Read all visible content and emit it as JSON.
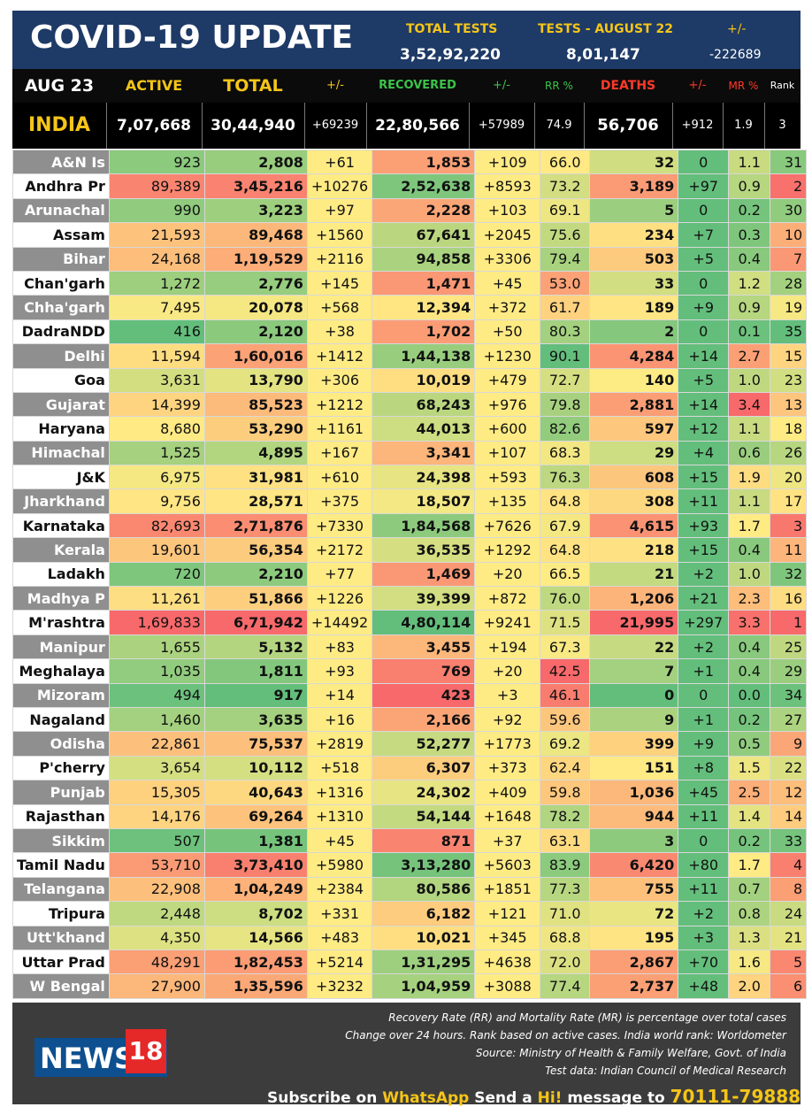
{
  "header": {
    "title": "COVID-19 UPDATE",
    "total_tests_label": "TOTAL TESTS",
    "total_tests_value": "3,52,92,220",
    "tests_day_label": "TESTS - AUGUST 22",
    "tests_day_value": "8,01,147",
    "diff_label": "+/-",
    "diff_value": "-222689"
  },
  "columns": {
    "date": "AUG 23",
    "active": "ACTIVE",
    "total": "TOTAL",
    "total_change": "+/-",
    "recovered": "RECOVERED",
    "recovered_change": "+/-",
    "rr": "RR %",
    "deaths": "DEATHS",
    "deaths_change": "+/-",
    "mr": "MR %",
    "rank": "Rank"
  },
  "india": {
    "name": "INDIA",
    "active": "7,07,668",
    "total": "30,44,940",
    "total_change": "+69239",
    "recovered": "22,80,566",
    "recovered_change": "+57989",
    "rr": "74.9",
    "deaths": "56,706",
    "deaths_change": "+912",
    "mr": "1.9",
    "rank": "3"
  },
  "colors": {
    "header_bg": "#1e3a66",
    "accent_yellow": "#f5c518",
    "recovered_green": "#3cc34a",
    "deaths_red": "#ff3a2a",
    "footer_bg": "#3c3c3c",
    "news18_red": "#e52828",
    "news18_blue": "#0d4f8f"
  },
  "states": [
    [
      "A&N Is",
      "923",
      "2,808",
      "+61",
      "1,853",
      "+109",
      "66.0",
      "32",
      "0",
      "1.1",
      "31"
    ],
    [
      "Andhra Pr",
      "89,389",
      "3,45,216",
      "+10276",
      "2,52,638",
      "+8593",
      "73.2",
      "3,189",
      "+97",
      "0.9",
      "2"
    ],
    [
      "Arunachal",
      "990",
      "3,223",
      "+97",
      "2,228",
      "+103",
      "69.1",
      "5",
      "0",
      "0.2",
      "30"
    ],
    [
      "Assam",
      "21,593",
      "89,468",
      "+1560",
      "67,641",
      "+2045",
      "75.6",
      "234",
      "+7",
      "0.3",
      "10"
    ],
    [
      "Bihar",
      "24,168",
      "1,19,529",
      "+2116",
      "94,858",
      "+3306",
      "79.4",
      "503",
      "+5",
      "0.4",
      "7"
    ],
    [
      "Chan'garh",
      "1,272",
      "2,776",
      "+145",
      "1,471",
      "+45",
      "53.0",
      "33",
      "0",
      "1.2",
      "28"
    ],
    [
      "Chha'garh",
      "7,495",
      "20,078",
      "+568",
      "12,394",
      "+372",
      "61.7",
      "189",
      "+9",
      "0.9",
      "19"
    ],
    [
      "DadraNDD",
      "416",
      "2,120",
      "+38",
      "1,702",
      "+50",
      "80.3",
      "2",
      "0",
      "0.1",
      "35"
    ],
    [
      "Delhi",
      "11,594",
      "1,60,016",
      "+1412",
      "1,44,138",
      "+1230",
      "90.1",
      "4,284",
      "+14",
      "2.7",
      "15"
    ],
    [
      "Goa",
      "3,631",
      "13,790",
      "+306",
      "10,019",
      "+479",
      "72.7",
      "140",
      "+5",
      "1.0",
      "23"
    ],
    [
      "Gujarat",
      "14,399",
      "85,523",
      "+1212",
      "68,243",
      "+976",
      "79.8",
      "2,881",
      "+14",
      "3.4",
      "13"
    ],
    [
      "Haryana",
      "8,680",
      "53,290",
      "+1161",
      "44,013",
      "+600",
      "82.6",
      "597",
      "+12",
      "1.1",
      "18"
    ],
    [
      "Himachal",
      "1,525",
      "4,895",
      "+167",
      "3,341",
      "+107",
      "68.3",
      "29",
      "+4",
      "0.6",
      "26"
    ],
    [
      "J&K",
      "6,975",
      "31,981",
      "+610",
      "24,398",
      "+593",
      "76.3",
      "608",
      "+15",
      "1.9",
      "20"
    ],
    [
      "Jharkhand",
      "9,756",
      "28,571",
      "+375",
      "18,507",
      "+135",
      "64.8",
      "308",
      "+11",
      "1.1",
      "17"
    ],
    [
      "Karnataka",
      "82,693",
      "2,71,876",
      "+7330",
      "1,84,568",
      "+7626",
      "67.9",
      "4,615",
      "+93",
      "1.7",
      "3"
    ],
    [
      "Kerala",
      "19,601",
      "56,354",
      "+2172",
      "36,535",
      "+1292",
      "64.8",
      "218",
      "+15",
      "0.4",
      "11"
    ],
    [
      "Ladakh",
      "720",
      "2,210",
      "+77",
      "1,469",
      "+20",
      "66.5",
      "21",
      "+2",
      "1.0",
      "32"
    ],
    [
      "Madhya P",
      "11,261",
      "51,866",
      "+1226",
      "39,399",
      "+872",
      "76.0",
      "1,206",
      "+21",
      "2.3",
      "16"
    ],
    [
      "M'rashtra",
      "1,69,833",
      "6,71,942",
      "+14492",
      "4,80,114",
      "+9241",
      "71.5",
      "21,995",
      "+297",
      "3.3",
      "1"
    ],
    [
      "Manipur",
      "1,655",
      "5,132",
      "+83",
      "3,455",
      "+194",
      "67.3",
      "22",
      "+2",
      "0.4",
      "25"
    ],
    [
      "Meghalaya",
      "1,035",
      "1,811",
      "+93",
      "769",
      "+20",
      "42.5",
      "7",
      "+1",
      "0.4",
      "29"
    ],
    [
      "Mizoram",
      "494",
      "917",
      "+14",
      "423",
      "+3",
      "46.1",
      "0",
      "0",
      "0.0",
      "34"
    ],
    [
      "Nagaland",
      "1,460",
      "3,635",
      "+16",
      "2,166",
      "+92",
      "59.6",
      "9",
      "+1",
      "0.2",
      "27"
    ],
    [
      "Odisha",
      "22,861",
      "75,537",
      "+2819",
      "52,277",
      "+1773",
      "69.2",
      "399",
      "+9",
      "0.5",
      "9"
    ],
    [
      "P'cherry",
      "3,654",
      "10,112",
      "+518",
      "6,307",
      "+373",
      "62.4",
      "151",
      "+8",
      "1.5",
      "22"
    ],
    [
      "Punjab",
      "15,305",
      "40,643",
      "+1316",
      "24,302",
      "+409",
      "59.8",
      "1,036",
      "+45",
      "2.5",
      "12"
    ],
    [
      "Rajasthan",
      "14,176",
      "69,264",
      "+1310",
      "54,144",
      "+1648",
      "78.2",
      "944",
      "+11",
      "1.4",
      "14"
    ],
    [
      "Sikkim",
      "507",
      "1,381",
      "+45",
      "871",
      "+37",
      "63.1",
      "3",
      "0",
      "0.2",
      "33"
    ],
    [
      "Tamil Nadu",
      "53,710",
      "3,73,410",
      "+5980",
      "3,13,280",
      "+5603",
      "83.9",
      "6,420",
      "+80",
      "1.7",
      "4"
    ],
    [
      "Telangana",
      "22,908",
      "1,04,249",
      "+2384",
      "80,586",
      "+1851",
      "77.3",
      "755",
      "+11",
      "0.7",
      "8"
    ],
    [
      "Tripura",
      "2,448",
      "8,702",
      "+331",
      "6,182",
      "+121",
      "71.0",
      "72",
      "+2",
      "0.8",
      "24"
    ],
    [
      "Utt'khand",
      "4,350",
      "14,566",
      "+483",
      "10,021",
      "+345",
      "68.8",
      "195",
      "+3",
      "1.3",
      "21"
    ],
    [
      "Uttar Prad",
      "48,291",
      "1,82,453",
      "+5214",
      "1,31,295",
      "+4638",
      "72.0",
      "2,867",
      "+70",
      "1.6",
      "5"
    ],
    [
      "W Bengal",
      "27,900",
      "1,35,596",
      "+3232",
      "1,04,959",
      "+3088",
      "77.4",
      "2,737",
      "+48",
      "2.0",
      "6"
    ]
  ],
  "footer": {
    "note1": "Recovery Rate (RR) and Mortality Rate (MR) is percentage over total cases",
    "note2": "Change over 24 hours. Rank based on active cases. India world rank: Worldometer",
    "note3": "Source: Ministry of Health & Family Welfare, Govt. of India",
    "note4": "Test data: Indian Council of Medical Research",
    "logo_text": "NEWS",
    "logo_number": "18",
    "subscribe_pre": "Subscribe on ",
    "subscribe_app": "WhatsApp",
    "subscribe_mid": " Send a ",
    "subscribe_hi": "Hi!",
    "subscribe_post": " message to ",
    "subscribe_number": "70111-79888"
  }
}
